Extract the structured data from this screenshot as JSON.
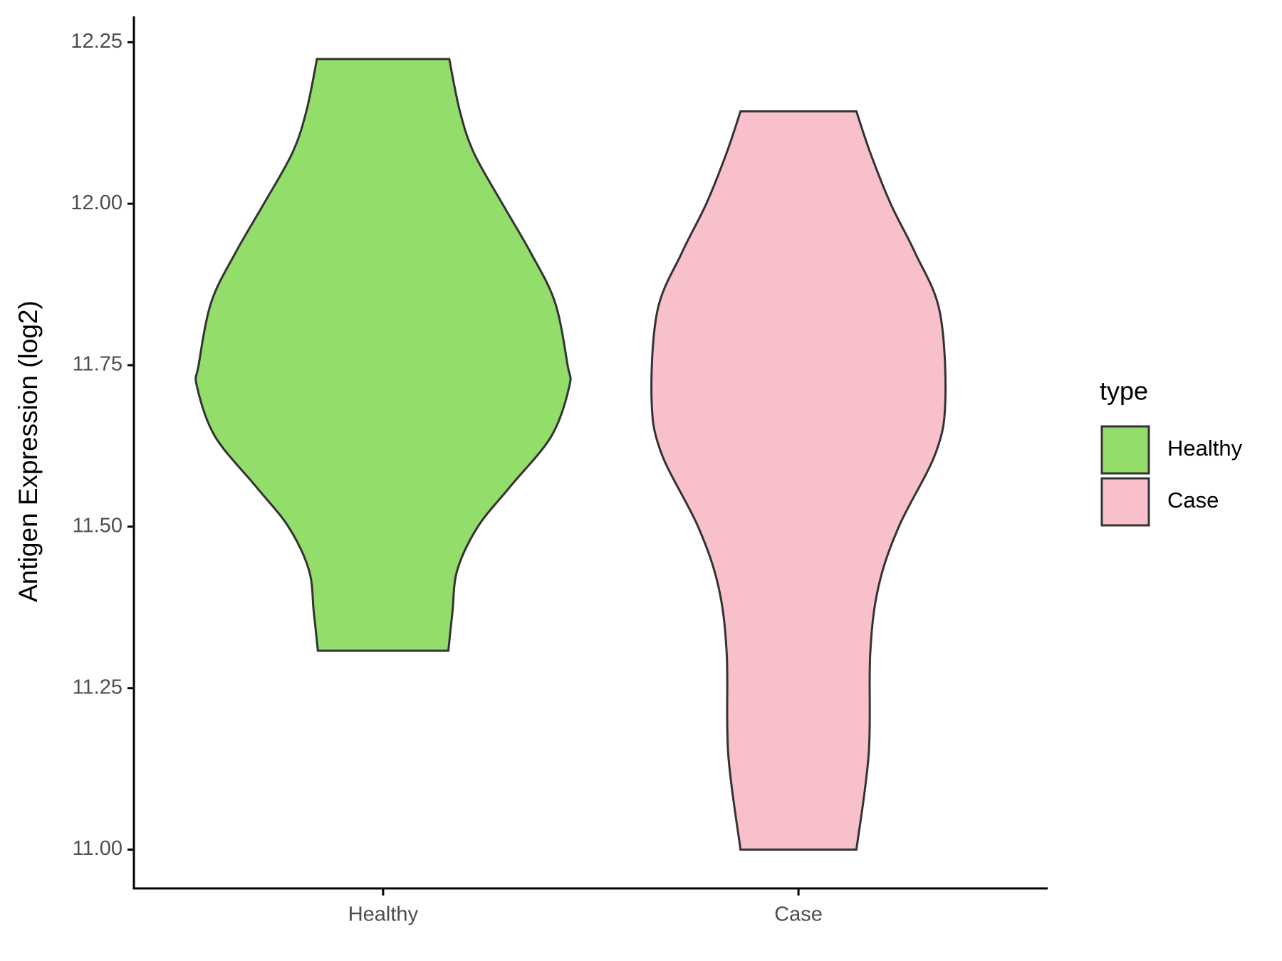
{
  "chart_data": {
    "type": "violin",
    "y_label": "Antigen Expression (log2)",
    "categories": [
      "Healthy",
      "Case"
    ],
    "legend_title": "type",
    "series": [
      {
        "name": "Healthy",
        "color": "#93dd6a",
        "y": [
          12.224,
          12.144,
          12.079,
          12.0,
          11.924,
          11.847,
          11.75,
          11.717,
          11.64,
          11.562,
          11.5,
          11.433,
          11.368,
          11.308
        ],
        "density": [
          0.354,
          0.41,
          0.485,
          0.638,
          0.79,
          0.92,
          0.987,
          0.996,
          0.9,
          0.68,
          0.507,
          0.397,
          0.371,
          0.349
        ]
      },
      {
        "name": "Case",
        "color": "#f8c0cb",
        "y": [
          12.143,
          12.079,
          12.0,
          11.924,
          11.834,
          11.698,
          11.614,
          11.5,
          11.407,
          11.304,
          11.149,
          11.0
        ],
        "density": [
          0.31,
          0.384,
          0.493,
          0.624,
          0.755,
          0.786,
          0.734,
          0.537,
          0.428,
          0.384,
          0.376,
          0.31
        ]
      }
    ],
    "ylim": [
      10.94,
      12.29
    ],
    "yticks": [
      {
        "value": 11,
        "label": "11.00"
      },
      11.25,
      {
        "value": 11.5,
        "label": "11.50"
      },
      11.75,
      {
        "value": 12,
        "label": "12.00"
      },
      12.25
    ],
    "outline_color": "#333333"
  }
}
